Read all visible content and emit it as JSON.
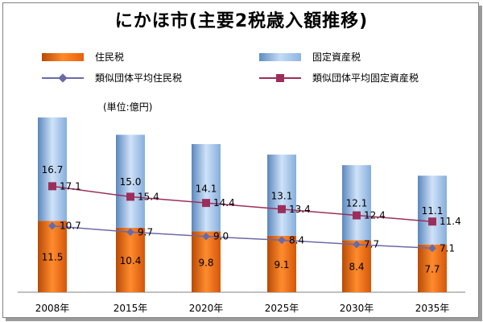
{
  "title": "にかほ市(主要2税歳入額推移)",
  "unit_label": "(単位:億円)",
  "legend": {
    "resident": "住民税",
    "property": "固定資産税",
    "similar_resident": "類似団体平均住民税",
    "similar_property": "類似団体平均固定資産税"
  },
  "colors": {
    "resident": "#e8600c",
    "property": "#8db4e2",
    "similar_resident_line": "#6a6aa8",
    "similar_property_line": "#9b2f5c"
  },
  "chart_data": {
    "type": "bar",
    "stacked": true,
    "categories": [
      "2008年",
      "2015年",
      "2020年",
      "2025年",
      "2030年",
      "2035年"
    ],
    "series": [
      {
        "name": "住民税",
        "values": [
          11.5,
          10.4,
          9.8,
          9.1,
          8.4,
          7.7
        ]
      },
      {
        "name": "固定資産税",
        "values": [
          16.7,
          15.0,
          14.1,
          13.1,
          12.1,
          11.1
        ]
      }
    ],
    "lines": [
      {
        "name": "類似団体平均住民税",
        "values": [
          10.7,
          9.7,
          9.0,
          8.4,
          7.7,
          7.1
        ]
      },
      {
        "name": "類似団体平均固定資産税",
        "values": [
          17.1,
          15.4,
          14.4,
          13.4,
          12.4,
          11.4
        ]
      }
    ],
    "ylim": [
      0,
      30
    ],
    "ylabel": "",
    "xlabel": ""
  }
}
